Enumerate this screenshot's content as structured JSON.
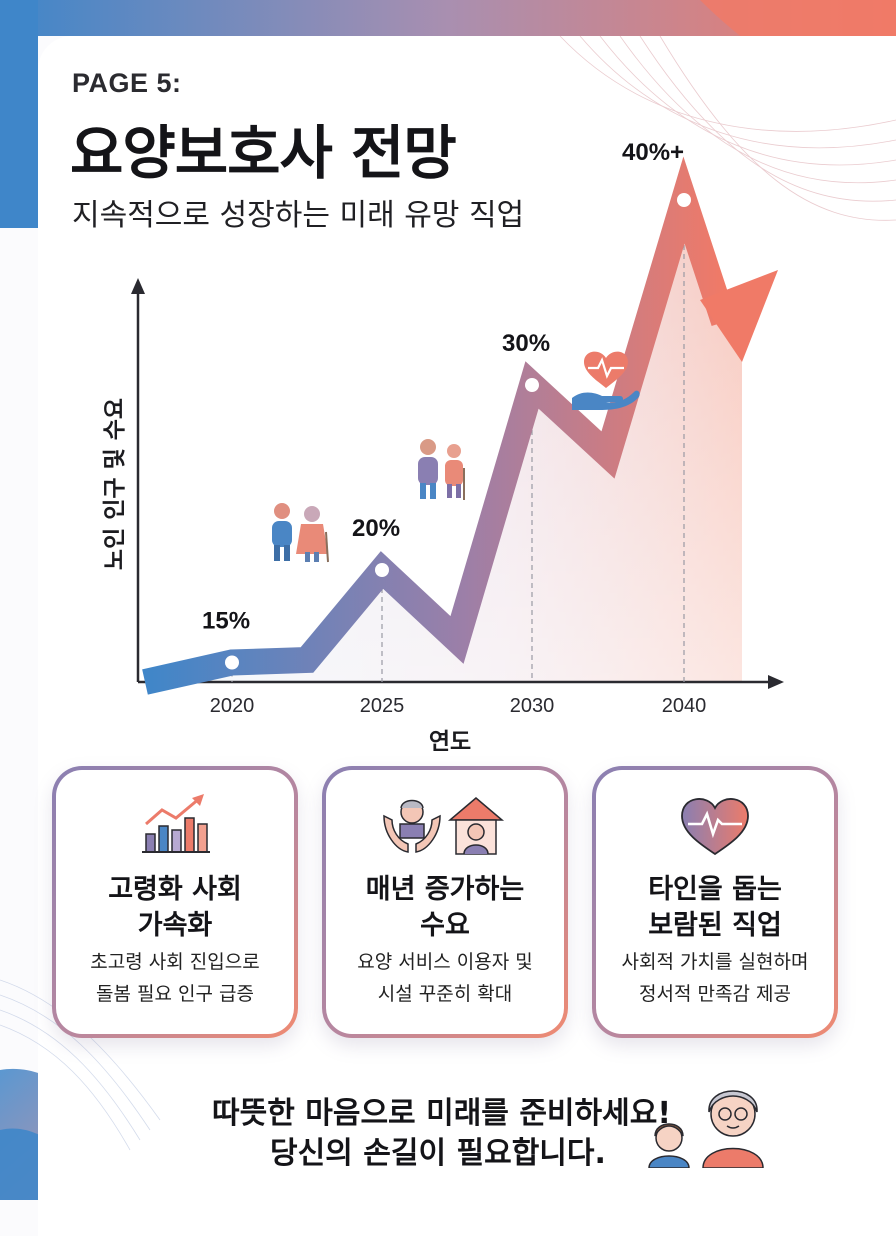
{
  "header": {
    "page_label": "PAGE 5:",
    "title": "요양보호사 전망",
    "subtitle": "지속적으로 성장하는 미래 유망 직업"
  },
  "chart_data": {
    "type": "line",
    "title": "요양보호사 전망",
    "xlabel": "연도",
    "ylabel": "노인 인구 및 수요",
    "categories": [
      "2020",
      "2025",
      "2030",
      "2040"
    ],
    "series": [
      {
        "name": "노인 인구 및 수요",
        "values": [
          15,
          20,
          30,
          40
        ]
      }
    ],
    "data_labels": [
      "15%",
      "20%",
      "30%",
      "40%+"
    ],
    "trend": "upward arrow",
    "colors": {
      "start": "#3f86c9",
      "mid": "#9c7fa8",
      "end": "#f07a67"
    }
  },
  "features": [
    {
      "icon": "rising-bar-chart-icon",
      "title_line1": "고령화 사회",
      "title_line2": "가속화",
      "desc_line1": "초고령 사회 진입으로",
      "desc_line2": "돌봄 필요 인구 급증"
    },
    {
      "icon": "caring-hands-house-icon",
      "title_line1": "매년 증가하는",
      "title_line2": "수요",
      "desc_line1": "요양 서비스 이용자 및",
      "desc_line2": "시설 꾸준히 확대"
    },
    {
      "icon": "heartbeat-heart-icon",
      "title_line1": "타인을 돕는",
      "title_line2": "보람된 직업",
      "desc_line1": "사회적 가치를 실현하며",
      "desc_line2": "정서적 만족감 제공"
    }
  ],
  "footer": {
    "line1": "따뜻한 마음으로 미래를 준비하세요!",
    "line2": "당신의 손길이 필요합니다."
  },
  "colors": {
    "blue": "#3f86c9",
    "coral": "#f07a67",
    "purple": "#8a7fb2"
  }
}
